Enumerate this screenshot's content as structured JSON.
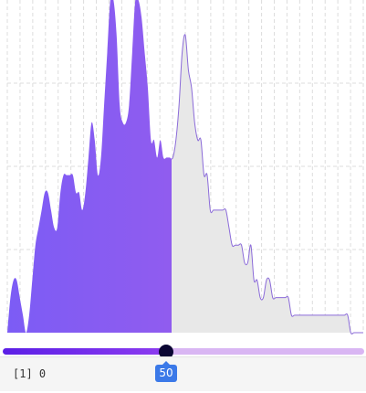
{
  "chart_data": {
    "type": "area",
    "x": [
      1,
      2,
      3,
      4,
      5,
      6,
      7,
      8,
      9,
      10,
      11,
      12,
      13,
      14,
      15,
      16,
      17,
      18,
      19,
      20,
      21,
      22,
      23,
      24,
      25,
      26,
      27,
      28,
      29,
      30,
      31,
      32,
      33,
      34,
      35,
      36,
      37,
      38,
      39,
      40,
      41,
      42,
      43,
      44,
      45,
      46,
      47,
      48,
      49,
      50,
      51,
      52,
      53,
      54,
      55,
      56,
      57,
      58,
      59,
      60,
      61,
      62,
      63,
      64,
      65,
      66,
      67,
      68,
      69,
      70,
      71,
      72,
      73,
      74,
      75,
      76,
      77,
      78,
      79,
      80,
      81,
      82,
      83,
      84,
      85,
      86,
      87,
      88,
      89,
      90,
      91,
      92,
      93,
      94,
      95,
      96,
      97,
      98,
      99,
      100,
      101,
      102,
      103,
      104,
      105,
      106,
      107,
      108,
      109,
      110,
      111,
      112,
      113,
      114,
      115
    ],
    "values": [
      0,
      2,
      3,
      3,
      2,
      1,
      0,
      1,
      3,
      5,
      6,
      7,
      8,
      8,
      7,
      6,
      6,
      8,
      9,
      9,
      9,
      9,
      8,
      8,
      7,
      8,
      10,
      12,
      11,
      9,
      10,
      13,
      16,
      19,
      19,
      17,
      13,
      12,
      12,
      13,
      16,
      19,
      19,
      18,
      16,
      14,
      11,
      11,
      10,
      11,
      10,
      10,
      10,
      10,
      11,
      13,
      16,
      17,
      15,
      14,
      12,
      11,
      11,
      9,
      9,
      7,
      7,
      7,
      7,
      7,
      7,
      6,
      5,
      5,
      5,
      5,
      4,
      4,
      5,
      3,
      3,
      2,
      2,
      3,
      3,
      2,
      2,
      2,
      2,
      2,
      2,
      1,
      1,
      1,
      1,
      1,
      1,
      1,
      1,
      1,
      1,
      1,
      1,
      1,
      1,
      1,
      1,
      1,
      1,
      1,
      0,
      0,
      0,
      0,
      0
    ],
    "ylim": [
      0,
      19
    ],
    "grid": true,
    "colors": {
      "selected_start": "#7c5cf5",
      "selected_end": "#a85be8",
      "unselected": "#e8e8e8",
      "outline": "#8b6bd9"
    }
  },
  "slider": {
    "min": 0,
    "max": 100,
    "value": 50,
    "value_label": "50",
    "colors": {
      "active": "#6d28d9",
      "rest": "#d9b6f3",
      "thumb": "#0b0633",
      "badge": "#3b79e8"
    }
  },
  "output": {
    "text": "[1] 0"
  }
}
